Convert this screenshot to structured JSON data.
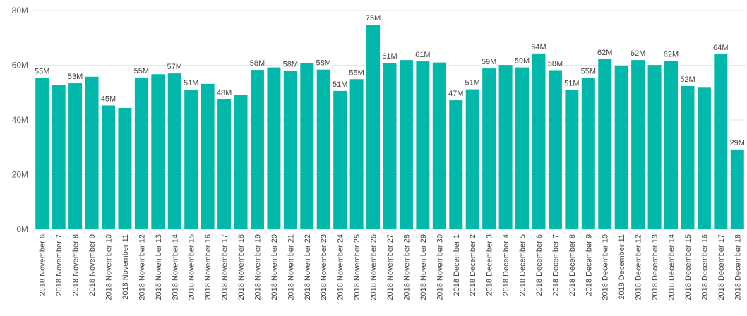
{
  "chart_data": {
    "type": "bar",
    "title": "",
    "xlabel": "",
    "ylabel": "",
    "ylim": [
      0,
      80
    ],
    "unit": "M",
    "yticks": [
      "0M",
      "20M",
      "40M",
      "60M",
      "80M"
    ],
    "grid": true,
    "bar_color": "#01B8AA",
    "categories": [
      "2018 November 6",
      "2018 November 7",
      "2018 November 8",
      "2018 November 9",
      "2018 November 10",
      "2018 November 11",
      "2018 November 12",
      "2018 November 13",
      "2018 November 14",
      "2018 November 15",
      "2018 November 16",
      "2018 November 17",
      "2018 November 18",
      "2018 November 19",
      "2018 November 20",
      "2018 November 21",
      "2018 November 22",
      "2018 November 23",
      "2018 November 24",
      "2018 November 25",
      "2018 November 26",
      "2018 November 27",
      "2018 November 28",
      "2018 November 29",
      "2018 November 30",
      "2018 December 1",
      "2018 December 2",
      "2018 December 3",
      "2018 December 4",
      "2018 December 5",
      "2018 December 6",
      "2018 December 7",
      "2018 December 8",
      "2018 December 9",
      "2018 December 10",
      "2018 December 11",
      "2018 December 12",
      "2018 December 13",
      "2018 December 14",
      "2018 December 15",
      "2018 December 16",
      "2018 December 17",
      "2018 December 18"
    ],
    "values": [
      55.3,
      52.9,
      53.4,
      55.8,
      45.3,
      44.4,
      55.5,
      56.7,
      57.0,
      51.1,
      53.2,
      47.5,
      49.1,
      58.3,
      59.2,
      57.9,
      60.8,
      58.4,
      50.6,
      54.9,
      74.8,
      60.9,
      61.9,
      61.4,
      61.0,
      47.2,
      51.2,
      58.8,
      60.1,
      59.2,
      64.3,
      58.2,
      51.0,
      55.4,
      62.2,
      59.9,
      61.9,
      60.1,
      61.6,
      52.4,
      51.8,
      64.0,
      29.2
    ],
    "data_labels": [
      "55M",
      "",
      "53M",
      "",
      "45M",
      "",
      "55M",
      "",
      "57M",
      "51M",
      "",
      "48M",
      "",
      "58M",
      "",
      "58M",
      "",
      "58M",
      "51M",
      "55M",
      "75M",
      "61M",
      "",
      "61M",
      "",
      "47M",
      "51M",
      "59M",
      "",
      "59M",
      "64M",
      "58M",
      "51M",
      "55M",
      "62M",
      "",
      "62M",
      "",
      "62M",
      "52M",
      "",
      "64M",
      "29M"
    ]
  }
}
